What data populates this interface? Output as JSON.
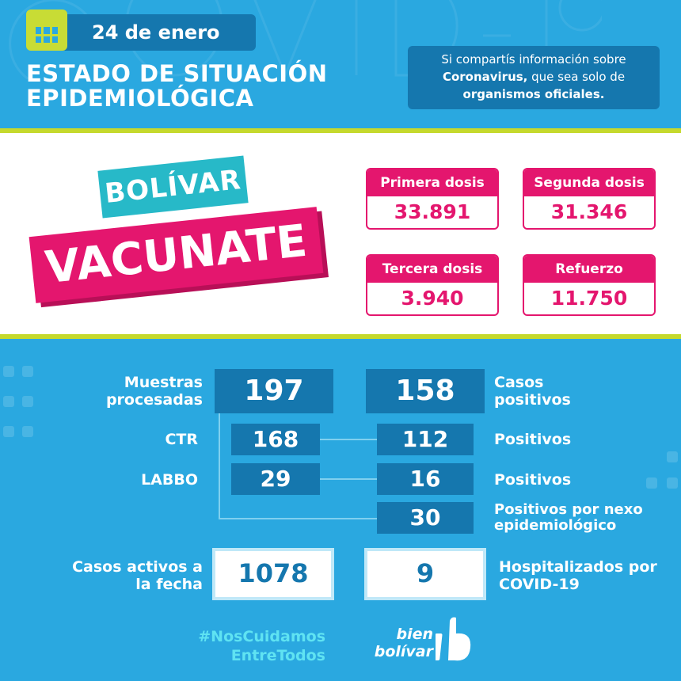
{
  "watermark": "COVID-19",
  "header": {
    "date": "24 de enero",
    "title_line1": "ESTADO DE SITUACIÓN",
    "title_line2": "EPIDEMIOLÓGICA",
    "notice": {
      "pre": "Si compartís información sobre",
      "bold1": "Coronavirus,",
      "mid": " que sea solo de",
      "bold2": "organismos oficiales."
    }
  },
  "campaign": {
    "line1": "BOLÍVAR",
    "line2": "VACUNATE"
  },
  "doses": [
    {
      "label": "Primera dosis",
      "value": "33.891"
    },
    {
      "label": "Segunda dosis",
      "value": "31.346"
    },
    {
      "label": "Tercera dosis",
      "value": "3.940"
    },
    {
      "label": "Refuerzo",
      "value": "11.750"
    }
  ],
  "tests": {
    "samples_label": "Muestras procesadas",
    "samples_value": "197",
    "positive_label": "Casos positivos",
    "positive_value": "158",
    "ctr_label": "CTR",
    "ctr_value": "168",
    "ctr_pos_value": "112",
    "ctr_pos_label": "Positivos",
    "labbo_label": "LABBO",
    "labbo_value": "29",
    "labbo_pos_value": "16",
    "labbo_pos_label": "Positivos",
    "nexo_value": "30",
    "nexo_label": "Positivos por nexo epidemiológico"
  },
  "summary": {
    "active_label": "Casos activos a la fecha",
    "active_value": "1078",
    "hosp_value": "9",
    "hosp_label": "Hospitalizados por COVID-19"
  },
  "footer": {
    "hashtag1": "#NosCuidamos",
    "hashtag2": "EntreTodos",
    "logo_line1": "bien",
    "logo_line2": "bolívar"
  },
  "colors": {
    "background": "#2aa8e0",
    "dark_box": "#1577ae",
    "accent_lime": "#c5d92d",
    "pink": "#e4166e",
    "teal": "#27b9c8"
  }
}
